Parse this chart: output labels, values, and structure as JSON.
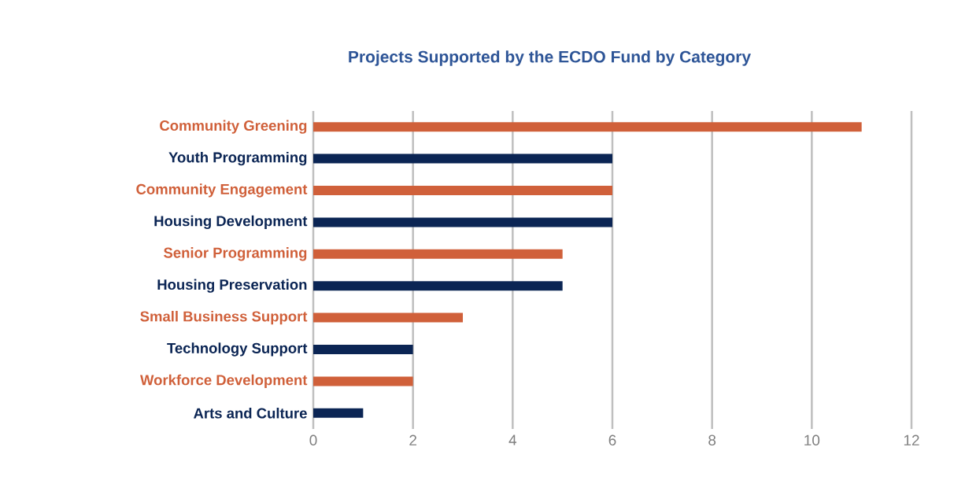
{
  "chart_data": {
    "type": "bar",
    "orientation": "horizontal",
    "title": "Projects Supported by the ECDO Fund by Category",
    "categories": [
      "Community Greening",
      "Youth Programming",
      "Community Engagement",
      "Housing Development",
      "Senior Programming",
      "Housing Preservation",
      "Small Business Support",
      "Technology Support",
      "Workforce Development",
      "Arts and Culture"
    ],
    "values": [
      11,
      6,
      6,
      6,
      5,
      5,
      3,
      2,
      2,
      1
    ],
    "colors": [
      "#d0603a",
      "#0b2554",
      "#d0603a",
      "#0b2554",
      "#d0603a",
      "#0b2554",
      "#d0603a",
      "#0b2554",
      "#d0603a",
      "#0b2554"
    ],
    "xlim": [
      0,
      12
    ],
    "xticks": [
      0,
      2,
      4,
      6,
      8,
      10,
      12
    ],
    "grid": "x"
  }
}
